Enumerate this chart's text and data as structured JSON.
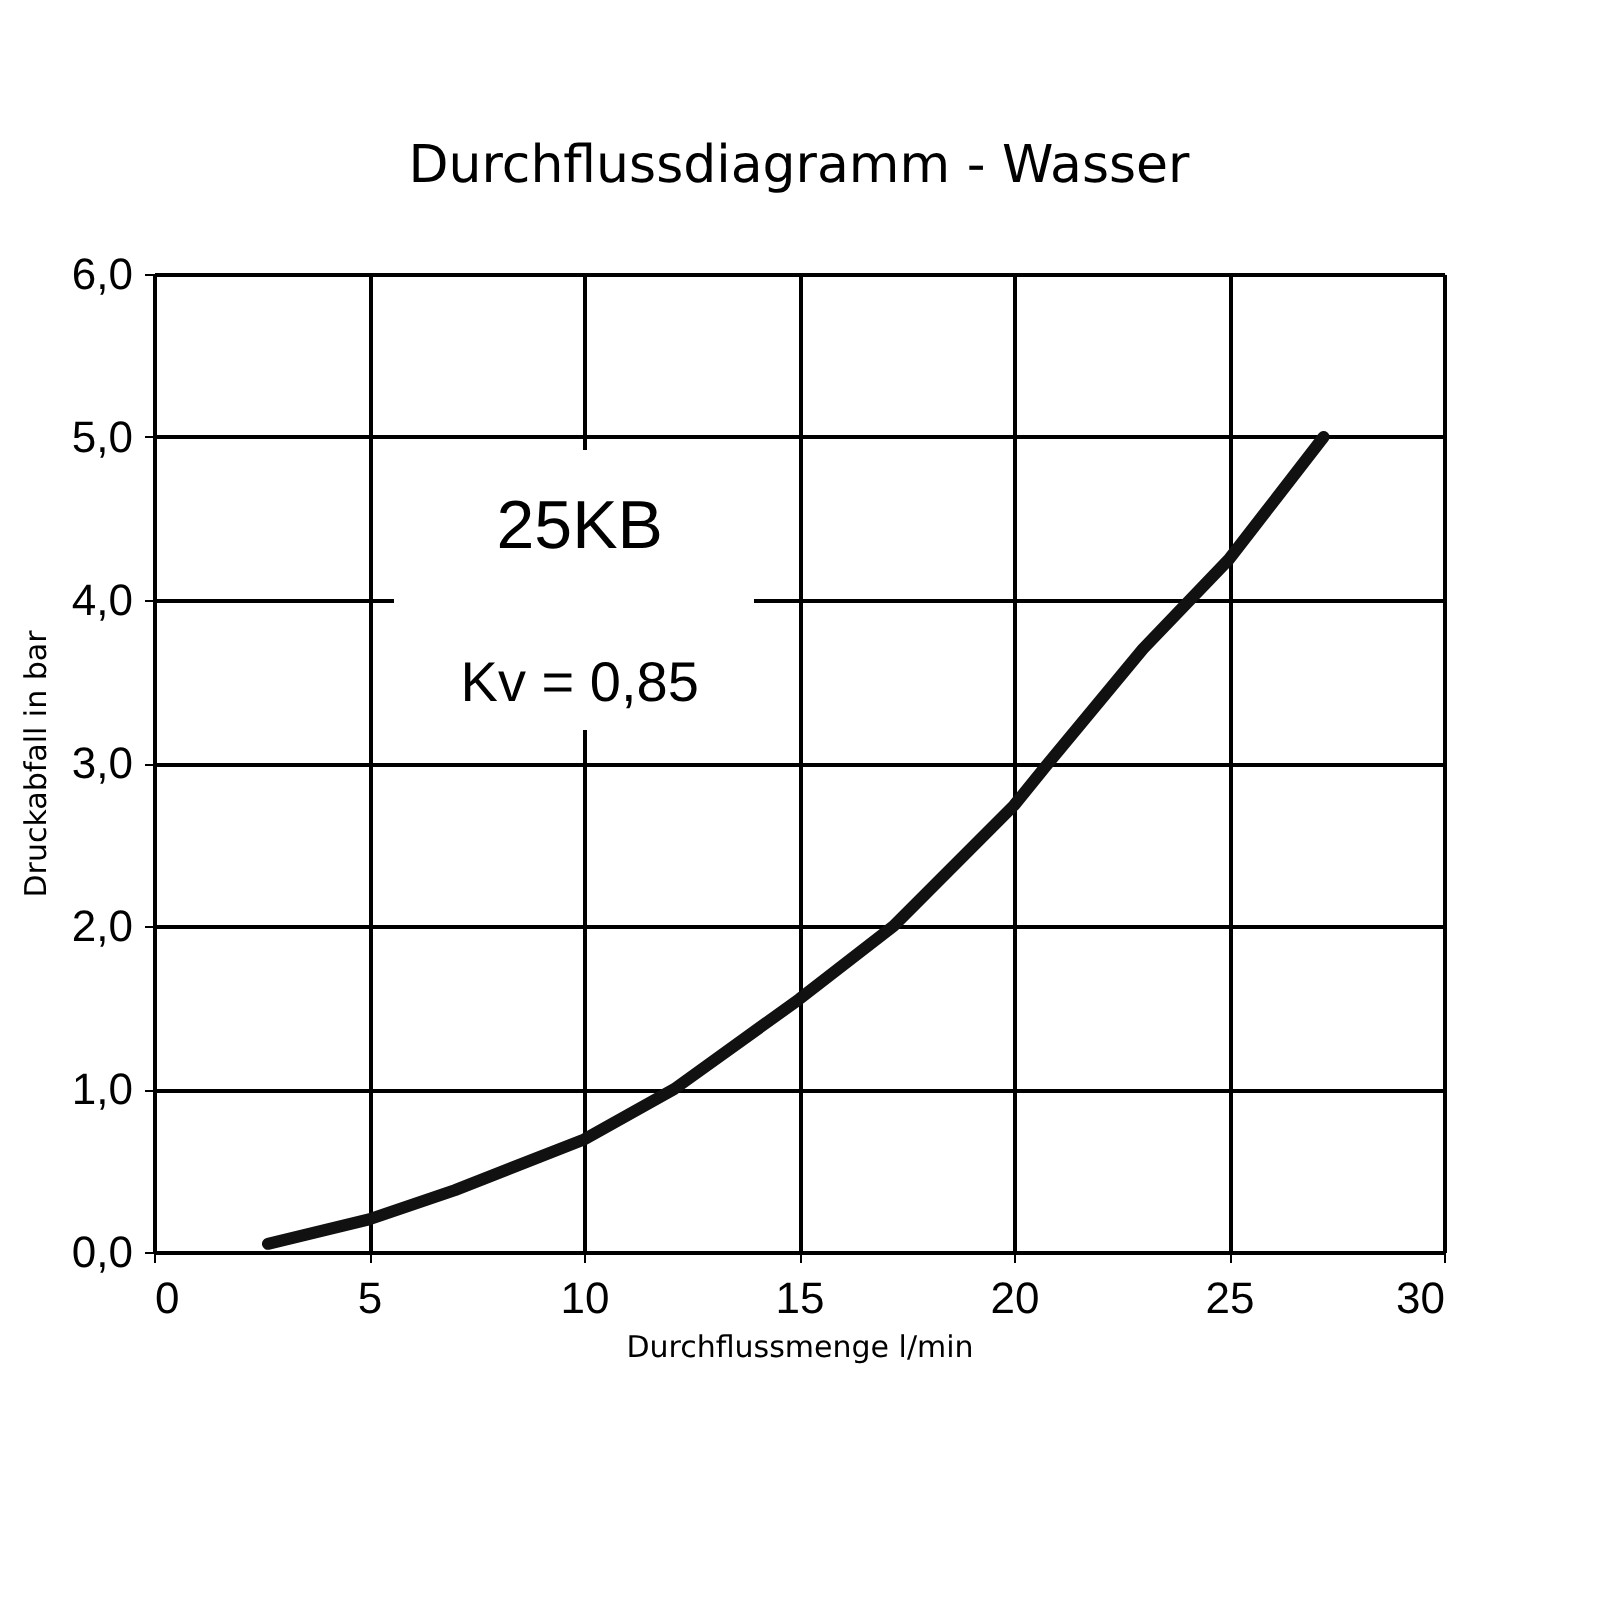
{
  "chart_data": {
    "type": "line",
    "title": "Durchflussdiagramm - Wasser",
    "xlabel": "Durchflussmenge l/min",
    "ylabel": "Druckabfall in bar",
    "annotations": [
      "25KB",
      "Kv = 0,85"
    ],
    "x": [
      2.65,
      5,
      7,
      10,
      12.1,
      15,
      17.2,
      20,
      20.8,
      23,
      25,
      27.2
    ],
    "series": [
      {
        "color": "#111111",
        "values": [
          0.05,
          0.2,
          0.38,
          0.69,
          1.0,
          1.55,
          2.0,
          2.74,
          3.0,
          3.7,
          4.25,
          5.0
        ]
      }
    ],
    "xlim": [
      0,
      30
    ],
    "xticks": [
      0,
      5,
      10,
      15,
      20,
      25,
      30
    ],
    "ylim": [
      0,
      6
    ],
    "yticks": [
      {
        "value": 0,
        "label": "0,0"
      },
      {
        "value": 1,
        "label": "1,0"
      },
      {
        "value": 2,
        "label": "2,0"
      },
      {
        "value": 3,
        "label": "3,0"
      },
      {
        "value": 4,
        "label": "4,0"
      },
      {
        "value": 5,
        "label": "5,0"
      },
      {
        "value": 6,
        "label": "6,0"
      }
    ],
    "grid": true,
    "marker": "none",
    "line_style": "solid"
  }
}
